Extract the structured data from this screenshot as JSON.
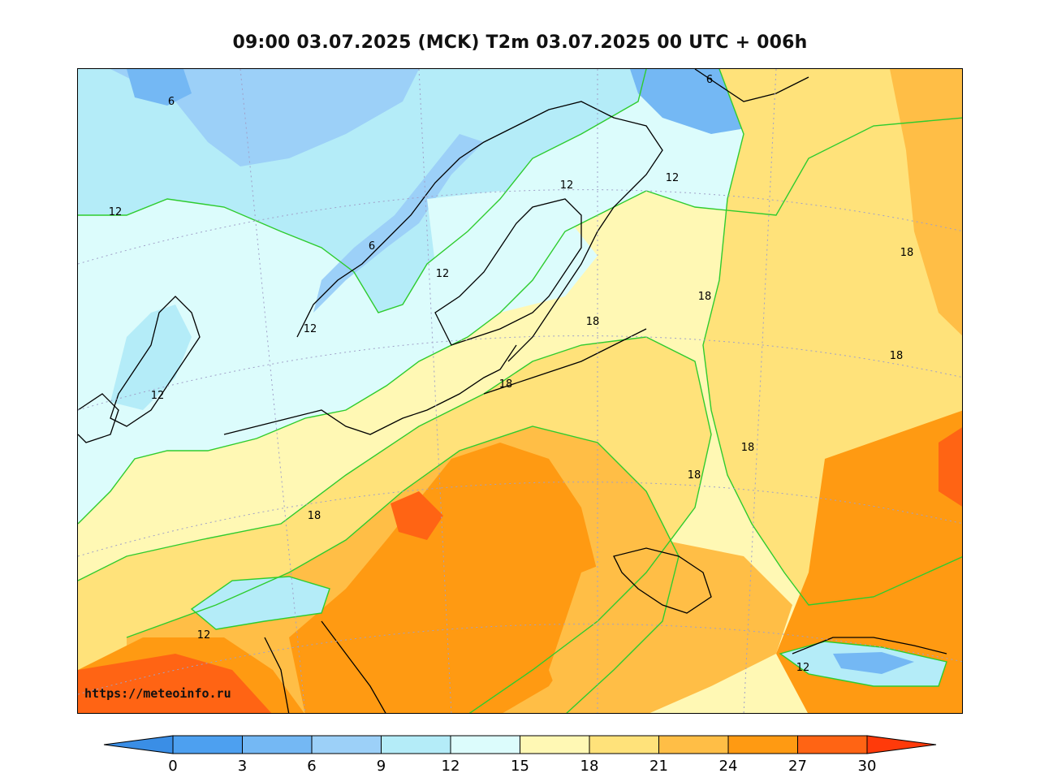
{
  "title": "09:00 03.07.2025 (MCK) T2m 03.07.2025 00 UTC + 006h",
  "source_url": "https://meteoinfo.ru",
  "map": {
    "variable": "T2m",
    "region": "Europe",
    "contour_labels": [
      "6",
      "6",
      "6",
      "12",
      "12",
      "12",
      "12",
      "12",
      "12",
      "12",
      "12",
      "18",
      "18",
      "18",
      "18",
      "18",
      "18",
      "18",
      "18",
      "12"
    ],
    "colors": {
      "water": "#ffffff",
      "coast": "#000000",
      "contour_line": "#2ecc2e",
      "grid": "#a0a0c8"
    }
  },
  "colorbar": {
    "ticks": [
      "0",
      "3",
      "6",
      "9",
      "12",
      "15",
      "18",
      "21",
      "24",
      "27",
      "30"
    ],
    "bins": [
      {
        "range": "<0",
        "color": "#3a8ee6"
      },
      {
        "range": "0-3",
        "color": "#4da0f0"
      },
      {
        "range": "3-6",
        "color": "#74b8f4"
      },
      {
        "range": "6-9",
        "color": "#9cd0f8"
      },
      {
        "range": "9-12",
        "color": "#b4ecf8"
      },
      {
        "range": "12-15",
        "color": "#dcfcfc"
      },
      {
        "range": "15-18",
        "color": "#fff8b4"
      },
      {
        "range": "18-21",
        "color": "#ffe27a"
      },
      {
        "range": "21-24",
        "color": "#ffbe46"
      },
      {
        "range": "24-27",
        "color": "#ff9a12"
      },
      {
        "range": "27-30",
        "color": "#ff6414"
      },
      {
        "range": ">30",
        "color": "#ff3a0a"
      }
    ]
  }
}
